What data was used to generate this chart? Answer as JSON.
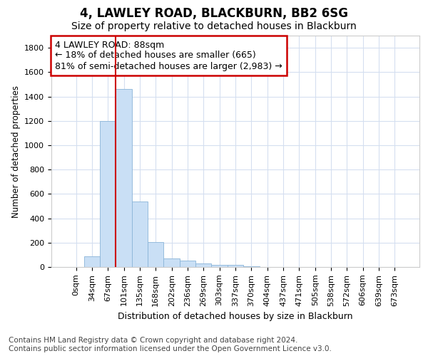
{
  "title": "4, LAWLEY ROAD, BLACKBURN, BB2 6SG",
  "subtitle": "Size of property relative to detached houses in Blackburn",
  "xlabel": "Distribution of detached houses by size in Blackburn",
  "ylabel": "Number of detached properties",
  "bar_labels": [
    "0sqm",
    "34sqm",
    "67sqm",
    "101sqm",
    "135sqm",
    "168sqm",
    "202sqm",
    "236sqm",
    "269sqm",
    "303sqm",
    "337sqm",
    "370sqm",
    "404sqm",
    "437sqm",
    "471sqm",
    "505sqm",
    "538sqm",
    "572sqm",
    "606sqm",
    "639sqm",
    "673sqm"
  ],
  "bar_values": [
    0,
    90,
    1200,
    1460,
    540,
    205,
    70,
    50,
    30,
    20,
    15,
    5,
    0,
    0,
    0,
    0,
    0,
    0,
    0,
    0,
    0
  ],
  "bar_color": "#c9dff5",
  "bar_edge_color": "#8ab4d8",
  "grid_color": "#d5dff0",
  "property_line_x": 2.5,
  "annotation_text": "4 LAWLEY ROAD: 88sqm\n← 18% of detached houses are smaller (665)\n81% of semi-detached houses are larger (2,983) →",
  "annotation_box_color": "white",
  "annotation_box_edge_color": "#cc0000",
  "vline_color": "#cc0000",
  "ylim": [
    0,
    1900
  ],
  "yticks": [
    0,
    200,
    400,
    600,
    800,
    1000,
    1200,
    1400,
    1600,
    1800
  ],
  "footer_text": "Contains HM Land Registry data © Crown copyright and database right 2024.\nContains public sector information licensed under the Open Government Licence v3.0.",
  "title_fontsize": 12,
  "subtitle_fontsize": 10,
  "xlabel_fontsize": 9,
  "ylabel_fontsize": 8.5,
  "tick_fontsize": 8,
  "annotation_fontsize": 9,
  "footer_fontsize": 7.5
}
